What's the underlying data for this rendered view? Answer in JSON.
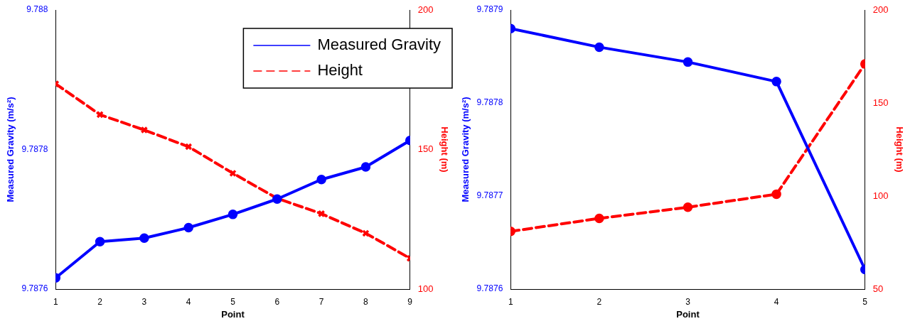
{
  "chart_data": [
    {
      "type": "line",
      "xlabel": "Point",
      "ylabel": "Measured Gravity (m/s²)",
      "y2label": "Height (m)",
      "x": [
        1,
        2,
        3,
        4,
        5,
        6,
        7,
        8,
        9
      ],
      "xlim": [
        1,
        9
      ],
      "xticks": [
        1,
        2,
        3,
        4,
        5,
        6,
        7,
        8,
        9
      ],
      "ylim": [
        9.7876,
        9.788
      ],
      "yticks": [
        9.7876,
        9.7878,
        9.788
      ],
      "y2lim": [
        100,
        200
      ],
      "y2ticks": [
        100,
        150,
        200
      ],
      "grid": false,
      "legend": "top right",
      "series": [
        {
          "name": "Measured Gravity",
          "color": "#0000ff",
          "marker": "circle",
          "line_style": "solid",
          "values": [
            9.787616,
            9.787668,
            9.787673,
            9.787688,
            9.787707,
            9.787729,
            9.787757,
            9.787775,
            9.787813
          ]
        },
        {
          "name": "Height",
          "color": "#ff0000",
          "marker": "cross",
          "line_style": "dashed",
          "axis": "y2",
          "values": [
            173.5,
            162.5,
            157,
            151,
            141.5,
            132.5,
            127,
            120,
            111
          ]
        }
      ]
    },
    {
      "type": "line",
      "xlabel": "Point",
      "ylabel": "Measured Gravity (m/s²)",
      "y2label": "Height (m)",
      "x": [
        1,
        2,
        3,
        4,
        5
      ],
      "xlim": [
        1,
        5
      ],
      "xticks": [
        1,
        2,
        3,
        4,
        5
      ],
      "ylim": [
        9.7876,
        9.7879
      ],
      "yticks": [
        9.7876,
        9.7877,
        9.7878,
        9.7879
      ],
      "y2lim": [
        50,
        200
      ],
      "y2ticks": [
        50,
        100,
        150,
        200
      ],
      "grid": false,
      "legend": false,
      "series": [
        {
          "color": "#0000ff",
          "marker": "circle",
          "line_style": "solid",
          "values": [
            9.78788,
            9.78786,
            9.787844,
            9.787823,
            9.787621
          ]
        },
        {
          "color": "#ff0000",
          "marker": "circle",
          "line_style": "dashed",
          "axis": "y2",
          "values": [
            81,
            88,
            94,
            101,
            171
          ]
        }
      ]
    }
  ]
}
